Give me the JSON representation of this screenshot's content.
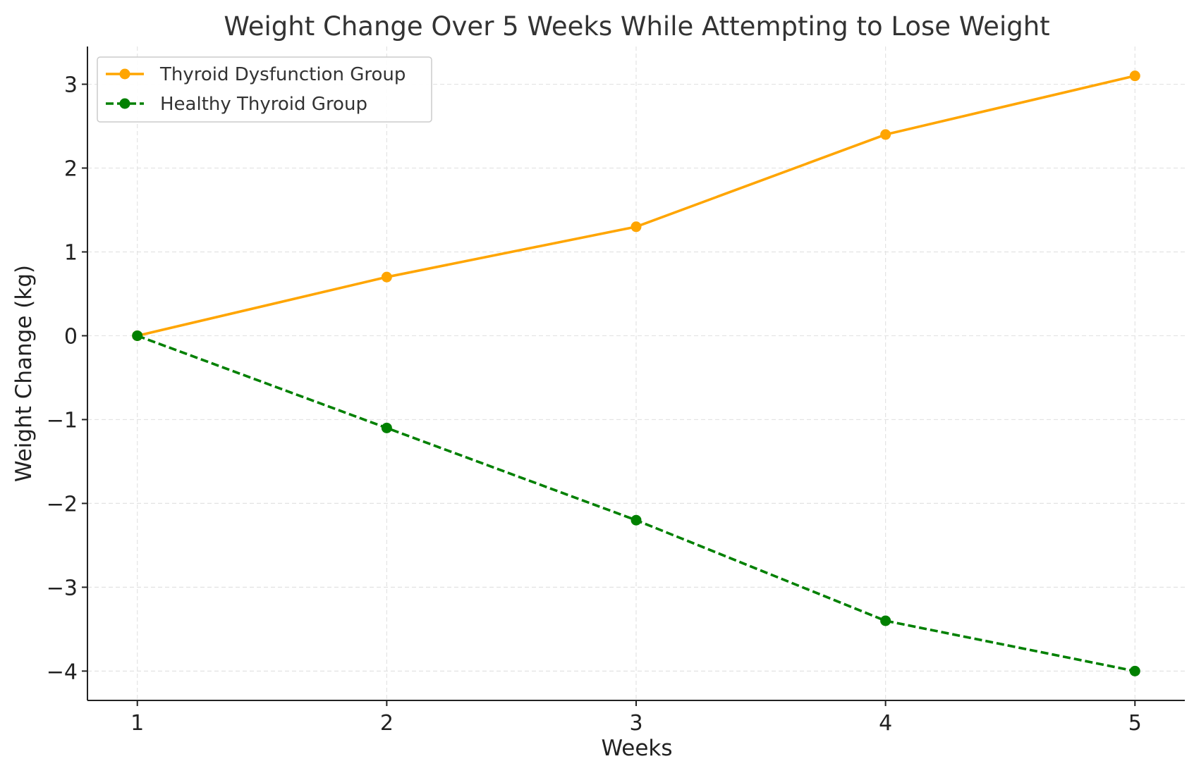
{
  "chart_data": {
    "type": "line",
    "title": "Weight Change Over 5 Weeks While Attempting to Lose Weight",
    "xlabel": "Weeks",
    "ylabel": "Weight Change (kg)",
    "x": [
      1,
      2,
      3,
      4,
      5
    ],
    "xlim": [
      0.8,
      5.2
    ],
    "ylim": [
      -4.35,
      3.45
    ],
    "xticks": [
      1,
      2,
      3,
      4,
      5
    ],
    "yticks": [
      -4,
      -3,
      -2,
      -1,
      0,
      1,
      2,
      3
    ],
    "ytick_labels": [
      "−4",
      "−3",
      "−2",
      "−1",
      "0",
      "1",
      "2",
      "3"
    ],
    "xtick_labels": [
      "1",
      "2",
      "3",
      "4",
      "5"
    ],
    "grid": true,
    "legend_position": "top-left",
    "series": [
      {
        "name": "Thyroid Dysfunction Group",
        "values": [
          0,
          0.7,
          1.3,
          2.4,
          3.1
        ],
        "color": "#FFA500",
        "line_style": "solid",
        "marker": "circle"
      },
      {
        "name": "Healthy Thyroid Group",
        "values": [
          0,
          -1.1,
          -2.2,
          -3.4,
          -4.0
        ],
        "color": "#008000",
        "line_style": "dashed",
        "marker": "circle"
      }
    ]
  }
}
